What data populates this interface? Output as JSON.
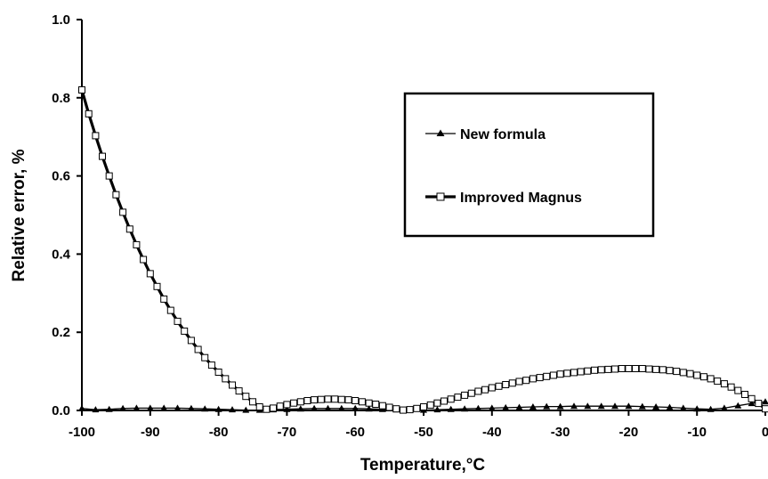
{
  "chart_data": {
    "type": "line",
    "xlabel": "Temperature,°C",
    "ylabel": "Relative error, %",
    "xlim": [
      -100,
      0
    ],
    "ylim": [
      0,
      1.0
    ],
    "x_ticks": [
      "-100",
      "-90",
      "-80",
      "-70",
      "-60",
      "-50",
      "-40",
      "-30",
      "-20",
      "-10",
      "0"
    ],
    "y_ticks": [
      "0.0",
      "0.2",
      "0.4",
      "0.6",
      "0.8",
      "1.0"
    ],
    "grid": false,
    "legend_position": "upper-right",
    "series": [
      {
        "name": "New formula",
        "marker": "filled-triangle",
        "color": "#000000",
        "x": [
          -100,
          -98,
          -96,
          -94,
          -92,
          -90,
          -88,
          -86,
          -84,
          -82,
          -80,
          -78,
          -76,
          -74,
          -72,
          -70,
          -68,
          -66,
          -64,
          -62,
          -60,
          -58,
          -56,
          -54,
          -52,
          -50,
          -48,
          -46,
          -44,
          -42,
          -40,
          -38,
          -36,
          -34,
          -32,
          -30,
          -28,
          -26,
          -24,
          -22,
          -20,
          -18,
          -16,
          -14,
          -12,
          -10,
          -8,
          -6,
          -4,
          -2,
          0
        ],
        "y": [
          0.005,
          0.002,
          0.003,
          0.005,
          0.006,
          0.006,
          0.006,
          0.006,
          0.005,
          0.004,
          0.003,
          0.002,
          0.001,
          0.001,
          0.002,
          0.003,
          0.004,
          0.005,
          0.005,
          0.005,
          0.005,
          0.004,
          0.003,
          0.002,
          0.001,
          0.001,
          0.002,
          0.003,
          0.004,
          0.005,
          0.006,
          0.007,
          0.008,
          0.009,
          0.01,
          0.01,
          0.011,
          0.011,
          0.011,
          0.011,
          0.011,
          0.01,
          0.009,
          0.008,
          0.006,
          0.004,
          0.003,
          0.006,
          0.012,
          0.018,
          0.022
        ]
      },
      {
        "name": "Improved Magnus",
        "marker": "open-square",
        "color": "#000000",
        "x": [
          -100,
          -99,
          -98,
          -97,
          -96,
          -95,
          -94,
          -93,
          -92,
          -91,
          -90,
          -89,
          -88,
          -87,
          -86,
          -85,
          -84,
          -83,
          -82,
          -81,
          -80,
          -79,
          -78,
          -77,
          -76,
          -75,
          -74,
          -73,
          -72,
          -71,
          -70,
          -69,
          -68,
          -67,
          -66,
          -65,
          -64,
          -63,
          -62,
          -61,
          -60,
          -59,
          -58,
          -57,
          -56,
          -55,
          -54,
          -53,
          -52,
          -51,
          -50,
          -49,
          -48,
          -47,
          -46,
          -45,
          -44,
          -43,
          -42,
          -41,
          -40,
          -39,
          -38,
          -37,
          -36,
          -35,
          -34,
          -33,
          -32,
          -31,
          -30,
          -29,
          -28,
          -27,
          -26,
          -25,
          -24,
          -23,
          -22,
          -21,
          -20,
          -19,
          -18,
          -17,
          -16,
          -15,
          -14,
          -13,
          -12,
          -11,
          -10,
          -9,
          -8,
          -7,
          -6,
          -5,
          -4,
          -3,
          -2,
          -1,
          0
        ],
        "y": [
          0.82,
          0.759,
          0.703,
          0.65,
          0.6,
          0.552,
          0.507,
          0.464,
          0.424,
          0.386,
          0.35,
          0.317,
          0.285,
          0.256,
          0.228,
          0.203,
          0.179,
          0.156,
          0.135,
          0.116,
          0.098,
          0.081,
          0.065,
          0.05,
          0.036,
          0.022,
          0.009,
          0.003,
          0.006,
          0.011,
          0.015,
          0.019,
          0.022,
          0.025,
          0.027,
          0.028,
          0.029,
          0.029,
          0.028,
          0.027,
          0.025,
          0.022,
          0.019,
          0.016,
          0.012,
          0.008,
          0.004,
          0.001,
          0.002,
          0.005,
          0.009,
          0.014,
          0.019,
          0.024,
          0.029,
          0.034,
          0.039,
          0.044,
          0.049,
          0.053,
          0.058,
          0.062,
          0.066,
          0.07,
          0.074,
          0.077,
          0.081,
          0.084,
          0.087,
          0.09,
          0.093,
          0.095,
          0.097,
          0.099,
          0.101,
          0.103,
          0.104,
          0.105,
          0.106,
          0.107,
          0.107,
          0.107,
          0.107,
          0.106,
          0.105,
          0.104,
          0.102,
          0.1,
          0.097,
          0.094,
          0.09,
          0.086,
          0.081,
          0.075,
          0.068,
          0.06,
          0.051,
          0.041,
          0.03,
          0.018,
          0.004
        ]
      }
    ]
  }
}
